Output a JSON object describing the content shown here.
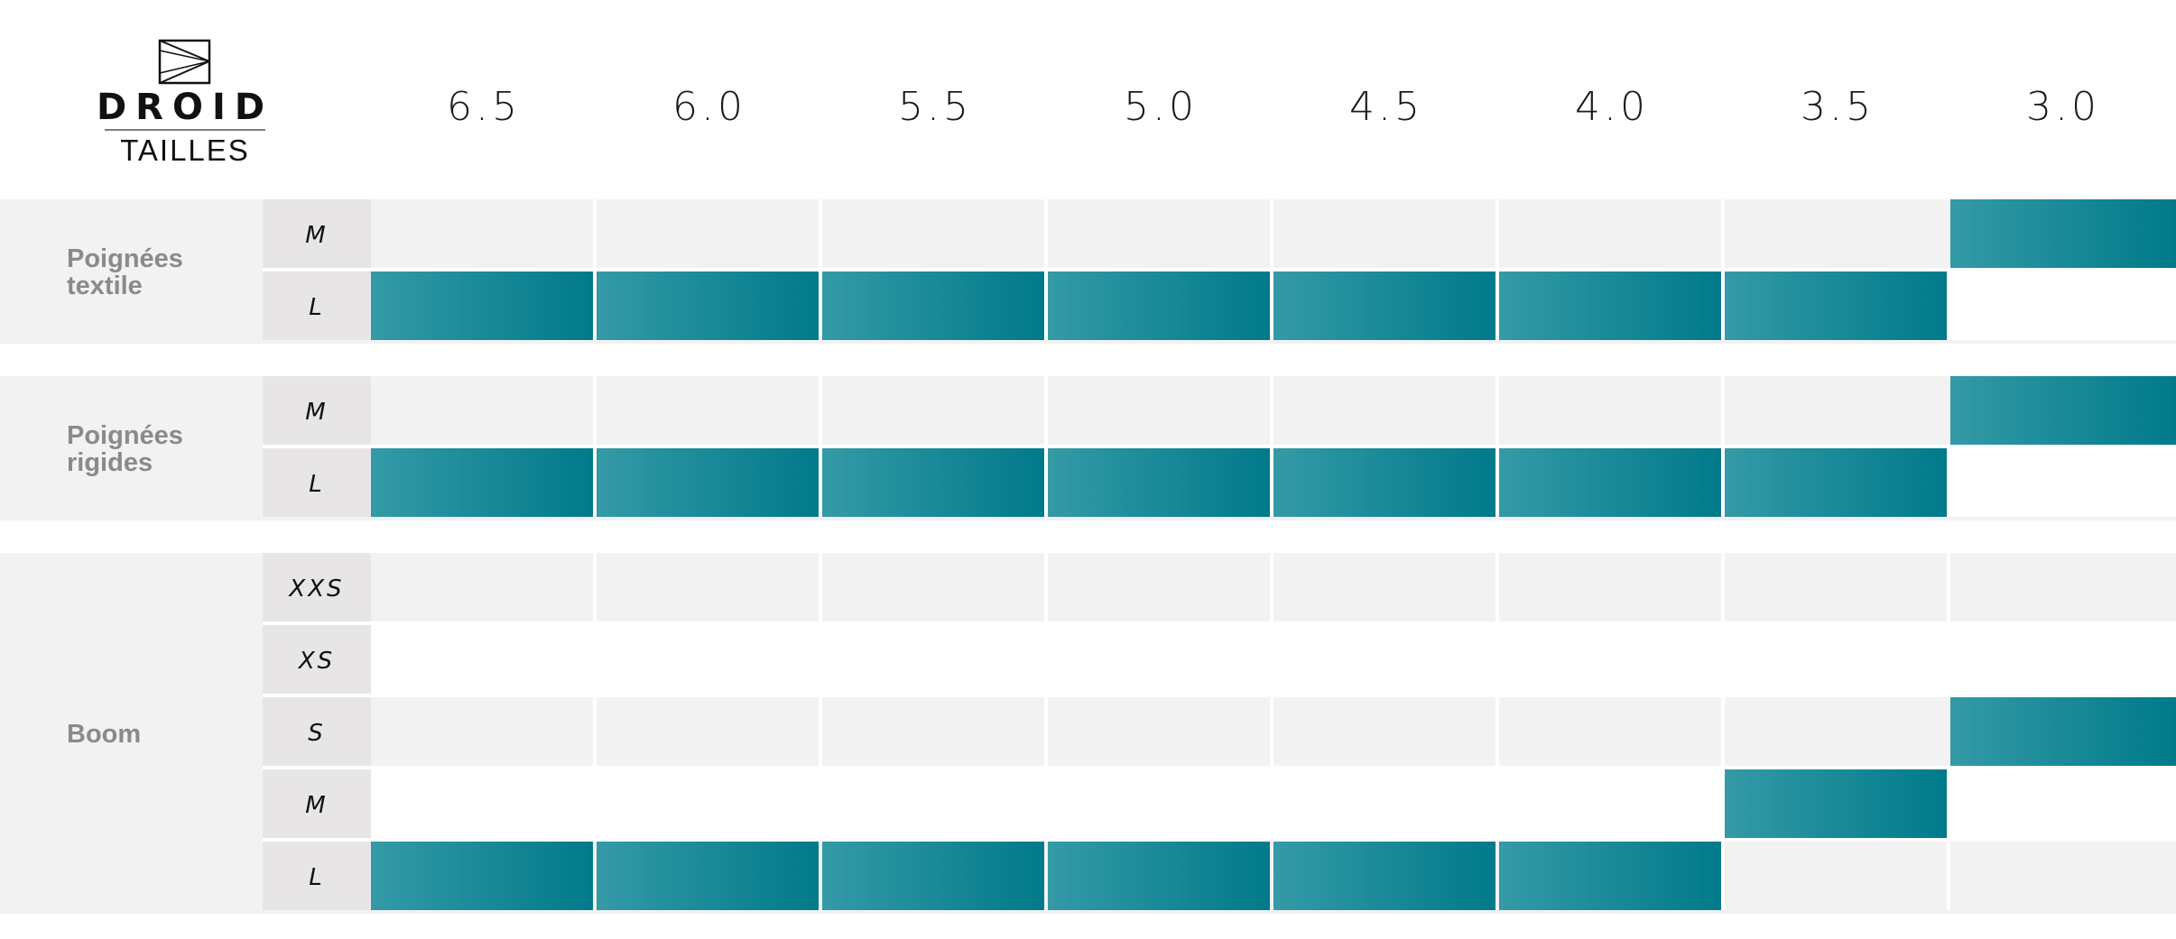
{
  "logo": {
    "brand": "DROID",
    "subtitle": "TAILLES",
    "icon": "droid-logo-icon"
  },
  "colors": {
    "band_background": "#f2f2f2",
    "size_cell": "#e7e5e6",
    "empty_cell": "#f2f2f2",
    "highlight_start": "#349aa6",
    "highlight_end": "#007a8a",
    "group_text": "#8a8a8a"
  },
  "chart_data": {
    "type": "table",
    "columns": [
      "6.5",
      "6.0",
      "5.5",
      "5.0",
      "4.5",
      "4.0",
      "3.5",
      "3.0"
    ],
    "groups": [
      {
        "label": "Poignées textile",
        "rows": [
          {
            "size": "M",
            "fits": [
              "3.0"
            ]
          },
          {
            "size": "L",
            "fits": [
              "6.5",
              "6.0",
              "5.5",
              "5.0",
              "4.5",
              "4.0",
              "3.5"
            ]
          }
        ]
      },
      {
        "label": "Poignées rigides",
        "rows": [
          {
            "size": "M",
            "fits": [
              "3.0"
            ]
          },
          {
            "size": "L",
            "fits": [
              "6.5",
              "6.0",
              "5.5",
              "5.0",
              "4.5",
              "4.0",
              "3.5"
            ]
          }
        ]
      },
      {
        "label": "Boom",
        "rows": [
          {
            "size": "XXS",
            "fits": []
          },
          {
            "size": "XS",
            "fits": []
          },
          {
            "size": "S",
            "fits": [
              "3.0"
            ]
          },
          {
            "size": "M",
            "fits": [
              "3.5"
            ]
          },
          {
            "size": "L",
            "fits": [
              "6.5",
              "6.0",
              "5.5",
              "5.0",
              "4.5",
              "4.0"
            ]
          }
        ]
      }
    ]
  }
}
